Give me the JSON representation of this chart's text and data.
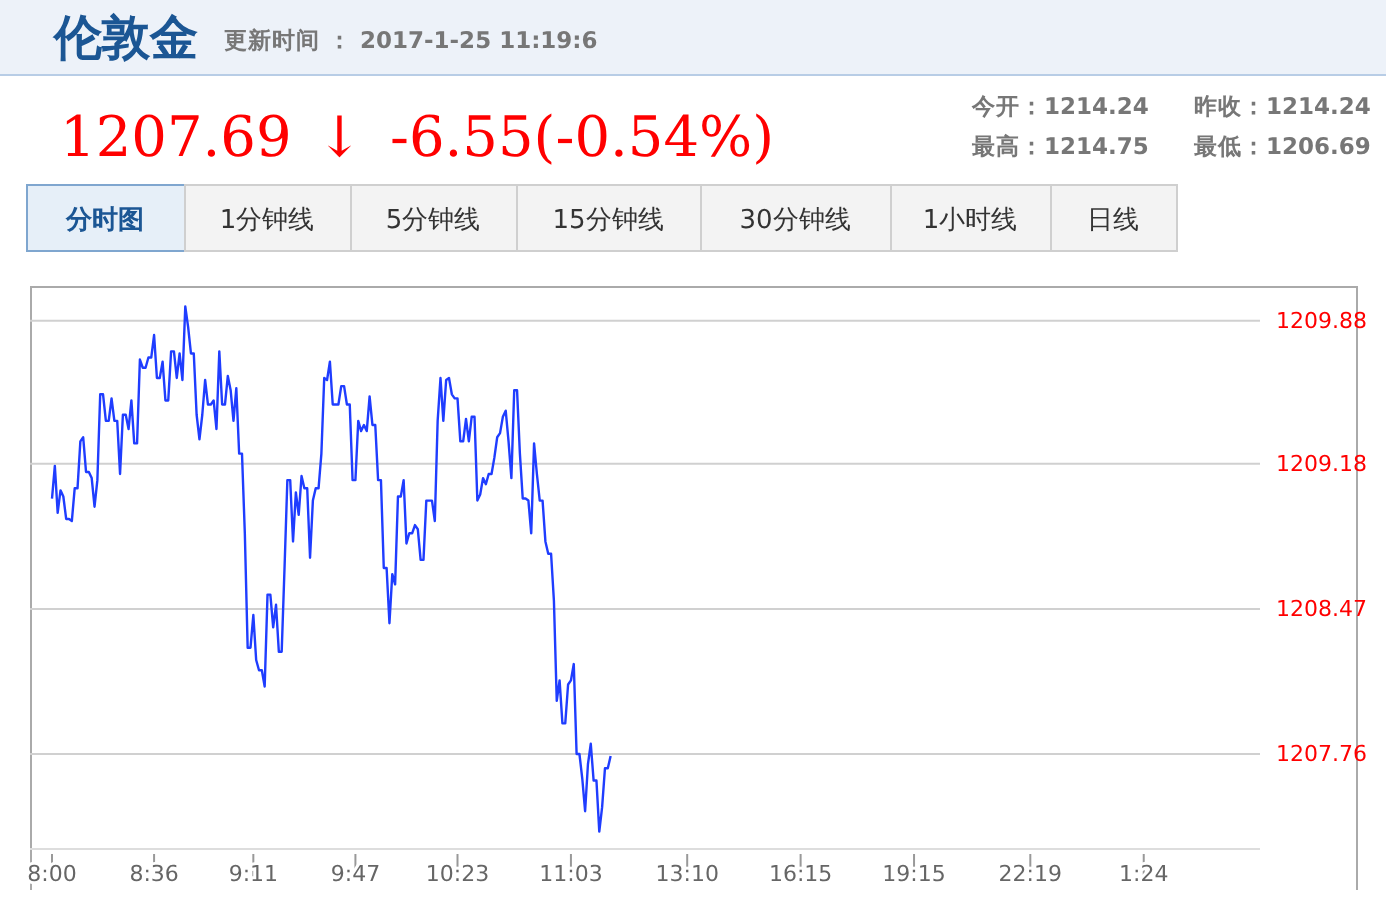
{
  "chart_data": {
    "type": "line",
    "title": "伦敦金",
    "subtitle": "更新时间 ： 2017-1-25 11:19:6",
    "annotations": [
      "1207.69",
      "↓",
      "-6.55(-0.54%)",
      "今开：1214.24",
      "昨收：1214.24",
      "最高：1214.75",
      "最低：1206.69",
      "分时图",
      "1分钟线",
      "5分钟线",
      "15分钟线",
      "30分钟线",
      "1小时线",
      "日线"
    ],
    "categories": [
      "8:00",
      null,
      null,
      null,
      null,
      null,
      null,
      null,
      null,
      null,
      null,
      null,
      null,
      null,
      null,
      null,
      null,
      null,
      null,
      null,
      null,
      null,
      null,
      null,
      null,
      null,
      null,
      null,
      null,
      null,
      null,
      null,
      null,
      null,
      null,
      null,
      "8:36",
      null,
      null,
      null,
      null,
      null,
      null,
      null,
      null,
      null,
      null,
      null,
      null,
      null,
      null,
      null,
      null,
      null,
      null,
      null,
      null,
      null,
      null,
      null,
      null,
      null,
      null,
      null,
      null,
      null,
      null,
      null,
      null,
      null,
      null,
      "9:11",
      null,
      null,
      null,
      null,
      null,
      null,
      null,
      null,
      null,
      null,
      null,
      null,
      null,
      null,
      null,
      null,
      null,
      null,
      null,
      null,
      null,
      null,
      null,
      null,
      null,
      null,
      null,
      null,
      null,
      null,
      null,
      null,
      null,
      null,
      null,
      "9:47",
      null,
      null,
      null,
      null,
      null,
      null,
      null,
      null,
      null,
      null,
      null,
      null,
      null,
      null,
      null,
      null,
      null,
      null,
      null,
      null,
      null,
      null,
      null,
      null,
      null,
      null,
      null,
      null,
      null,
      null,
      null,
      null,
      null,
      null,
      null,
      "10:23",
      null,
      null,
      null,
      null,
      null,
      null,
      null,
      null,
      null,
      null,
      null,
      null,
      null,
      null,
      null,
      null,
      null,
      null,
      null,
      null,
      null,
      null,
      null,
      null,
      null,
      null,
      null,
      null,
      null,
      null,
      null,
      null,
      null,
      null,
      null,
      null,
      null,
      null,
      null,
      "11:03",
      null,
      null,
      null,
      null,
      null,
      null,
      null,
      null,
      null,
      null,
      null,
      null,
      null,
      null,
      null,
      null,
      null,
      null,
      null,
      null,
      null,
      null,
      null,
      null,
      null,
      null,
      null,
      null,
      null,
      null,
      null,
      null,
      null,
      null,
      null,
      null,
      null,
      null,
      null,
      null,
      "13:10",
      null,
      null,
      null,
      null,
      null,
      null,
      null,
      null,
      null,
      null,
      null,
      null,
      null,
      null,
      null,
      null,
      null,
      null,
      null,
      null,
      null,
      null,
      null,
      null,
      null,
      null,
      null,
      null,
      null,
      null,
      null,
      null,
      null,
      null,
      null,
      null,
      null,
      null,
      null,
      "16:15",
      null,
      null,
      null,
      null,
      null,
      null,
      null,
      null,
      null,
      null,
      null,
      null,
      null,
      null,
      null,
      null,
      null,
      null,
      null,
      null,
      null,
      null,
      null,
      null,
      null,
      null,
      null,
      null,
      null,
      null,
      null,
      null,
      null,
      null,
      null,
      null,
      null,
      null,
      null,
      "19:15",
      null,
      null,
      null,
      null,
      null,
      null,
      null,
      null,
      null,
      null,
      null,
      null,
      null,
      null,
      null,
      null,
      null,
      null,
      null,
      null,
      null,
      null,
      null,
      null,
      null,
      null,
      null,
      null,
      null,
      null,
      null,
      null,
      null,
      null,
      null,
      null,
      null,
      null,
      null,
      null,
      "22:19",
      null,
      null,
      null,
      null,
      null,
      null,
      null,
      null,
      null,
      null,
      null,
      null,
      null,
      null,
      null,
      null,
      null,
      null,
      null,
      null,
      null,
      null,
      null,
      null,
      null,
      null,
      null,
      null,
      null,
      null,
      null,
      null,
      null,
      null,
      null,
      null,
      null,
      null,
      null,
      "1:24",
      null,
      null,
      null,
      null,
      null,
      null,
      null,
      null,
      null,
      null,
      null,
      null,
      null,
      null,
      null,
      null,
      null,
      null,
      null,
      null,
      null,
      null,
      null,
      null,
      null,
      null,
      null,
      null,
      null,
      null,
      null,
      null,
      null,
      null,
      null,
      null,
      null,
      null,
      null,
      null,
      null
    ],
    "series": [
      {
        "color": "#1f3dff",
        "values": [
          1209.01,
          1209.17,
          1208.94,
          1209.05,
          1209.02,
          1208.91,
          1208.91,
          1208.9,
          1209.06,
          1209.06,
          1209.29,
          1209.31,
          1209.14,
          1209.14,
          1209.11,
          1208.97,
          1209.1,
          1209.52,
          1209.52,
          1209.39,
          1209.39,
          1209.5,
          1209.39,
          1209.39,
          1209.13,
          1209.42,
          1209.42,
          1209.35,
          1209.49,
          1209.28,
          1209.28,
          1209.69,
          1209.65,
          1209.65,
          1209.7,
          1209.7,
          1209.81,
          1209.6,
          1209.6,
          1209.68,
          1209.49,
          1209.49,
          1209.73,
          1209.73,
          1209.6,
          1209.72,
          1209.59,
          1209.95,
          1209.85,
          1209.72,
          1209.72,
          1209.42,
          1209.3,
          1209.42,
          1209.59,
          1209.47,
          1209.47,
          1209.49,
          1209.35,
          1209.73,
          1209.47,
          1209.47,
          1209.61,
          1209.54,
          1209.39,
          1209.55,
          1209.23,
          1209.23,
          1208.84,
          1208.28,
          1208.28,
          1208.44,
          1208.22,
          1208.17,
          1208.17,
          1208.09,
          1208.54,
          1208.54,
          1208.38,
          1208.49,
          1208.26,
          1208.26,
          1208.67,
          1209.1,
          1209.1,
          1208.8,
          1209.04,
          1208.93,
          1209.12,
          1209.06,
          1209.06,
          1208.72,
          1209.0,
          1209.06,
          1209.06,
          1209.23,
          1209.6,
          1209.59,
          1209.68,
          1209.47,
          1209.47,
          1209.47,
          1209.56,
          1209.56,
          1209.47,
          1209.47,
          1209.1,
          1209.1,
          1209.39,
          1209.34,
          1209.37,
          1209.34,
          1209.51,
          1209.37,
          1209.37,
          1209.1,
          1209.1,
          1208.67,
          1208.67,
          1208.4,
          1208.64,
          1208.59,
          1209.02,
          1209.02,
          1209.1,
          1208.79,
          1208.84,
          1208.84,
          1208.88,
          1208.86,
          1208.71,
          1208.71,
          1209.0,
          1209.0,
          1209.0,
          1208.9,
          1209.39,
          1209.6,
          1209.39,
          1209.59,
          1209.6,
          1209.52,
          1209.5,
          1209.5,
          1209.29,
          1209.29,
          1209.4,
          1209.29,
          1209.41,
          1209.41,
          1209.0,
          1209.03,
          1209.11,
          1209.08,
          1209.13,
          1209.13,
          1209.21,
          1209.31,
          1209.33,
          1209.41,
          1209.44,
          1209.29,
          1209.11,
          1209.54,
          1209.54,
          1209.23,
          1209.01,
          1209.01,
          1209.0,
          1208.84,
          1209.28,
          1209.13,
          1209.0,
          1209.0,
          1208.8,
          1208.74,
          1208.74,
          1208.51,
          1208.02,
          1208.12,
          1207.91,
          1207.91,
          1208.1,
          1208.12,
          1208.2,
          1207.76,
          1207.76,
          1207.64,
          1207.48,
          1207.71,
          1207.81,
          1207.63,
          1207.63,
          1207.38,
          1207.5,
          1207.69,
          1207.69,
          1207.75,
          null,
          null,
          null,
          null,
          null,
          null,
          null,
          null,
          null,
          null,
          null,
          null,
          null,
          null,
          null,
          null,
          null,
          null,
          null,
          null,
          null,
          null,
          null,
          null,
          null,
          null,
          null,
          null,
          null,
          null,
          null,
          null,
          null,
          null,
          null,
          null,
          null,
          null,
          null,
          null,
          null,
          null,
          null,
          null,
          null,
          null,
          null,
          null,
          null,
          null,
          null,
          null,
          null,
          null,
          null,
          null,
          null,
          null,
          null,
          null,
          null,
          null,
          null,
          null,
          null,
          null,
          null,
          null,
          null,
          null,
          null,
          null,
          null,
          null,
          null,
          null,
          null,
          null,
          null,
          null,
          null,
          null,
          null,
          null,
          null,
          null,
          null,
          null,
          null,
          null,
          null,
          null,
          null,
          null,
          null,
          null,
          null,
          null,
          null,
          null,
          null,
          null,
          null,
          null,
          null,
          null,
          null,
          null,
          null,
          null,
          null,
          null,
          null,
          null,
          null,
          null,
          null,
          null,
          null,
          null,
          null,
          null,
          null,
          null,
          null,
          null,
          null,
          null,
          null,
          null,
          null,
          null,
          null,
          null,
          null,
          null,
          null,
          null,
          null,
          null,
          null,
          null,
          null,
          null,
          null,
          null,
          null,
          null,
          null,
          null,
          null,
          null,
          null,
          null,
          null,
          null,
          null,
          null,
          null,
          null,
          null,
          null,
          null,
          null,
          null,
          null,
          null,
          null,
          null,
          null,
          null,
          null,
          null,
          null,
          null,
          null,
          null,
          null,
          null,
          null,
          null,
          null,
          null,
          null,
          null,
          null,
          null,
          null,
          null,
          null,
          null,
          null,
          null,
          null,
          null,
          null,
          null,
          null,
          null,
          null,
          null,
          null,
          null,
          null,
          null,
          null,
          null,
          null,
          null,
          null,
          null,
          null,
          null,
          null,
          null,
          null,
          null,
          null,
          null,
          null,
          null,
          null,
          null,
          null,
          null,
          null,
          null,
          null,
          null
        ]
      }
    ],
    "ylim": [
      1207.3,
      1210.05
    ],
    "yticks": [
      1207.76,
      1208.47,
      1209.18,
      1209.88
    ],
    "grid": "y",
    "marker": "none",
    "line_style": "solid"
  }
}
